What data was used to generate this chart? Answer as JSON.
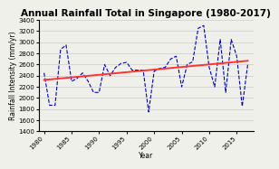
{
  "title": "Annual Rainfall Total in Singapore (1980-2017)",
  "xlabel": "Year",
  "ylabel": "Rainfall Intensity (mm/yr)",
  "years": [
    1980,
    1981,
    1982,
    1983,
    1984,
    1985,
    1986,
    1987,
    1988,
    1989,
    1990,
    1991,
    1992,
    1993,
    1994,
    1995,
    1996,
    1997,
    1998,
    1999,
    2000,
    2001,
    2002,
    2003,
    2004,
    2005,
    2006,
    2007,
    2008,
    2009,
    2010,
    2011,
    2012,
    2013,
    2014,
    2015,
    2016,
    2017
  ],
  "rainfall": [
    2450,
    1870,
    1870,
    2870,
    2950,
    2300,
    2350,
    2450,
    2300,
    2100,
    2100,
    2600,
    2400,
    2550,
    2620,
    2640,
    2500,
    2500,
    2500,
    1750,
    2480,
    2530,
    2550,
    2700,
    2750,
    2200,
    2600,
    2650,
    3250,
    3300,
    2550,
    2200,
    3050,
    2100,
    3050,
    2750,
    1850,
    2600
  ],
  "line_color": "#0000cc",
  "trend_color": "#ff3333",
  "bg_color": "#f0f0ea",
  "ylim": [
    1400,
    3400
  ],
  "yticks": [
    1400,
    1600,
    1800,
    2000,
    2200,
    2400,
    2600,
    2800,
    3000,
    3200,
    3400
  ],
  "xticks": [
    1980,
    1985,
    1990,
    1995,
    2000,
    2005,
    2010,
    2015
  ],
  "title_fontsize": 7.5,
  "label_fontsize": 5.5,
  "tick_fontsize": 5.0
}
